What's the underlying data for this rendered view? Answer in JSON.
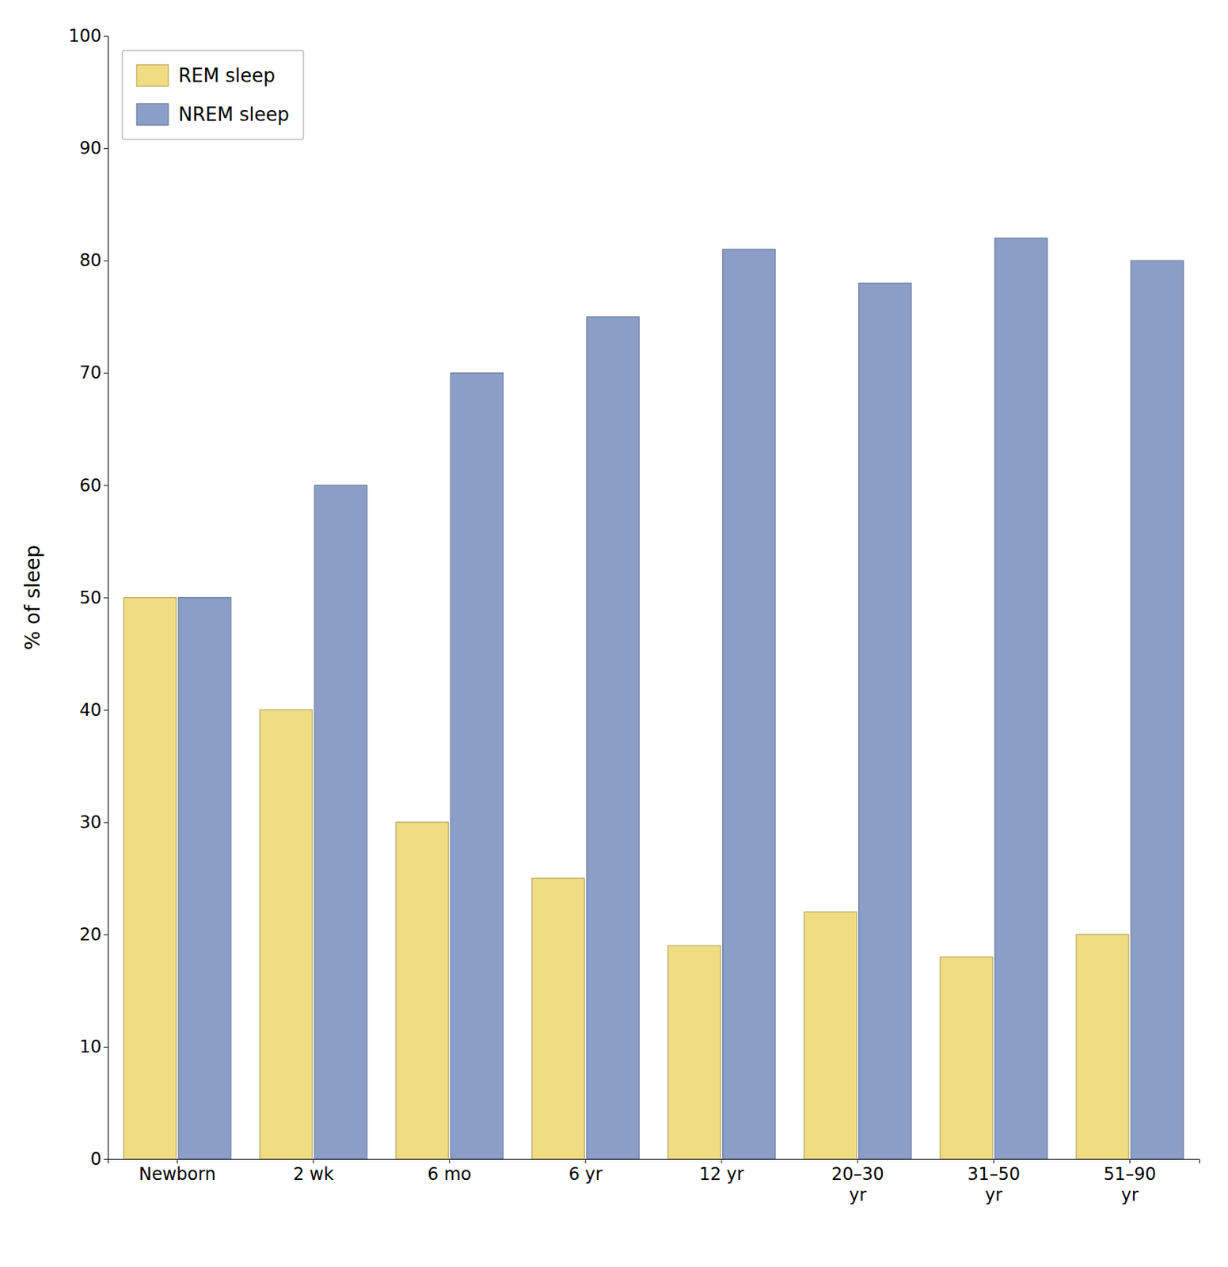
{
  "chart_data": {
    "type": "bar",
    "categories": [
      "Newborn",
      "2 wk",
      "6 mo",
      "6 yr",
      "12 yr",
      "20–30\nyr",
      "31–50\nyr",
      "51–90\nyr"
    ],
    "series": [
      {
        "name": "REM sleep",
        "color": "#F0DC82",
        "values": [
          50,
          40,
          30,
          25,
          19,
          22,
          18,
          20
        ]
      },
      {
        "name": "NREM sleep",
        "color": "#8A9EC8",
        "values": [
          50,
          60,
          70,
          75,
          81,
          78,
          82,
          80
        ]
      }
    ],
    "ylabel": "% of sleep",
    "ylim": [
      0,
      100
    ],
    "yticks": [
      0,
      10,
      20,
      30,
      40,
      50,
      60,
      70,
      80,
      90,
      100
    ],
    "grid": false,
    "legend": "upper left"
  }
}
